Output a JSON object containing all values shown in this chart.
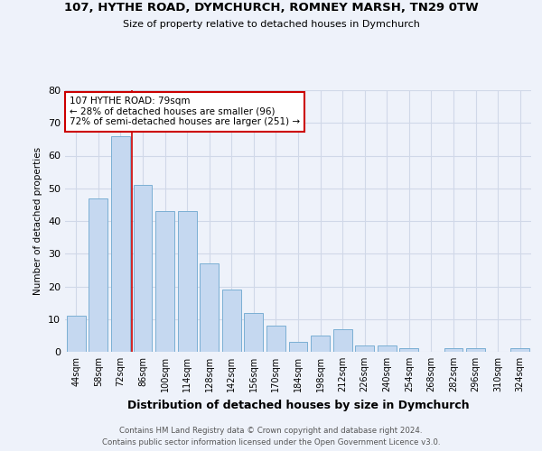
{
  "title_line1": "107, HYTHE ROAD, DYMCHURCH, ROMNEY MARSH, TN29 0TW",
  "title_line2": "Size of property relative to detached houses in Dymchurch",
  "xlabel": "Distribution of detached houses by size in Dymchurch",
  "ylabel": "Number of detached properties",
  "bar_labels": [
    "44sqm",
    "58sqm",
    "72sqm",
    "86sqm",
    "100sqm",
    "114sqm",
    "128sqm",
    "142sqm",
    "156sqm",
    "170sqm",
    "184sqm",
    "198sqm",
    "212sqm",
    "226sqm",
    "240sqm",
    "254sqm",
    "268sqm",
    "282sqm",
    "296sqm",
    "310sqm",
    "324sqm"
  ],
  "bar_values": [
    11,
    47,
    66,
    51,
    43,
    43,
    27,
    19,
    12,
    8,
    3,
    5,
    7,
    2,
    2,
    1,
    0,
    1,
    1,
    0,
    1
  ],
  "bar_color": "#c5d8f0",
  "bar_edge_color": "#7bafd4",
  "grid_color": "#d0d8e8",
  "bg_color": "#eef2fa",
  "red_line_x": 2.5,
  "annotation_text": "107 HYTHE ROAD: 79sqm\n← 28% of detached houses are smaller (96)\n72% of semi-detached houses are larger (251) →",
  "annotation_box_color": "#ffffff",
  "annotation_border_color": "#cc0000",
  "footer_line1": "Contains HM Land Registry data © Crown copyright and database right 2024.",
  "footer_line2": "Contains public sector information licensed under the Open Government Licence v3.0.",
  "ylim": [
    0,
    80
  ],
  "yticks": [
    0,
    10,
    20,
    30,
    40,
    50,
    60,
    70,
    80
  ]
}
